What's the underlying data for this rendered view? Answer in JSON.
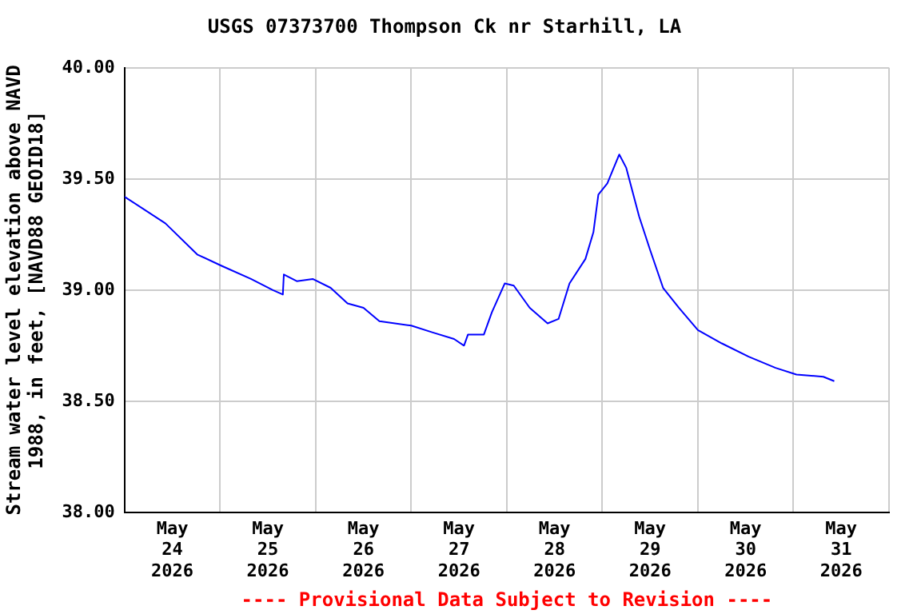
{
  "chart_data": {
    "type": "line",
    "title": "USGS 07373700 Thompson Ck nr Starhill, LA",
    "ylabel": "Stream water level elevation above NAVD 1988, in feet, [NAVD88 GEOID18]",
    "annotations": [
      "---- Provisional Data Subject to Revision ----"
    ],
    "xlim": [
      "2026-05-24T00:00",
      "2026-06-01T00:00"
    ],
    "xticks": [
      {
        "value": "2026-05-24T00:00",
        "label": null
      },
      {
        "value": "2026-05-24T12:00",
        "label": "May 24 2026"
      },
      {
        "value": "2026-05-25T00:00",
        "label": null
      },
      {
        "value": "2026-05-25T12:00",
        "label": "May 25 2026"
      },
      {
        "value": "2026-05-26T00:00",
        "label": null
      },
      {
        "value": "2026-05-26T12:00",
        "label": "May 26 2026"
      },
      {
        "value": "2026-05-27T00:00",
        "label": null
      },
      {
        "value": "2026-05-27T12:00",
        "label": "May 27 2026"
      },
      {
        "value": "2026-05-28T00:00",
        "label": null
      },
      {
        "value": "2026-05-28T12:00",
        "label": "May 28 2026"
      },
      {
        "value": "2026-05-29T00:00",
        "label": null
      },
      {
        "value": "2026-05-29T12:00",
        "label": "May 29 2026"
      },
      {
        "value": "2026-05-30T00:00",
        "label": null
      },
      {
        "value": "2026-05-30T12:00",
        "label": "May 30 2026"
      },
      {
        "value": "2026-05-31T00:00",
        "label": null
      },
      {
        "value": "2026-05-31T12:00",
        "label": "May 31 2026"
      },
      {
        "value": "2026-06-01T00:00",
        "label": null
      }
    ],
    "ylim": [
      38,
      40
    ],
    "yticks": [
      {
        "value": 38,
        "label": "38.00"
      },
      {
        "value": 38.5,
        "label": "38.50"
      },
      {
        "value": 39,
        "label": "39.00"
      },
      {
        "value": 39.5,
        "label": "39.50"
      },
      {
        "value": 40,
        "label": "40.00"
      }
    ],
    "grid": true,
    "legend": false,
    "marker": "none",
    "line_style": "solid",
    "series": [
      {
        "color": "#0000ff",
        "x": [
          "2026-05-24T00:00",
          "2026-05-24T10:15",
          "2026-05-24T18:15",
          "2026-05-25T00:15",
          "2026-05-25T07:45",
          "2026-05-25T13:15",
          "2026-05-25T15:45",
          "2026-05-25T16:00",
          "2026-05-25T19:15",
          "2026-05-25T23:15",
          "2026-05-26T03:45",
          "2026-05-26T08:00",
          "2026-05-26T12:00",
          "2026-05-26T16:00",
          "2026-05-27T00:00",
          "2026-05-27T05:15",
          "2026-05-27T10:45",
          "2026-05-27T13:15",
          "2026-05-27T14:15",
          "2026-05-27T18:15",
          "2026-05-27T20:15",
          "2026-05-27T23:30",
          "2026-05-28T01:45",
          "2026-05-28T05:45",
          "2026-05-28T10:15",
          "2026-05-28T13:00",
          "2026-05-28T15:45",
          "2026-05-28T19:45",
          "2026-05-28T21:45",
          "2026-05-28T23:00",
          "2026-05-29T01:15",
          "2026-05-29T04:15",
          "2026-05-29T06:00",
          "2026-05-29T09:15",
          "2026-05-29T12:00",
          "2026-05-29T15:15",
          "2026-05-29T19:15",
          "2026-05-30T00:00",
          "2026-05-30T06:00",
          "2026-05-30T12:45",
          "2026-05-30T19:30",
          "2026-05-31T00:45",
          "2026-05-31T07:30",
          "2026-05-31T10:15"
        ],
        "values": [
          39.42,
          39.3,
          39.16,
          39.11,
          39.05,
          39.0,
          38.98,
          39.07,
          39.04,
          39.05,
          39.01,
          38.94,
          38.92,
          38.86,
          38.84,
          38.81,
          38.78,
          38.75,
          38.8,
          38.8,
          38.9,
          39.03,
          39.02,
          38.92,
          38.85,
          38.87,
          39.03,
          39.14,
          39.26,
          39.43,
          39.48,
          39.61,
          39.55,
          39.33,
          39.18,
          39.01,
          38.92,
          38.82,
          38.76,
          38.7,
          38.65,
          38.62,
          38.61,
          38.59
        ]
      }
    ]
  }
}
